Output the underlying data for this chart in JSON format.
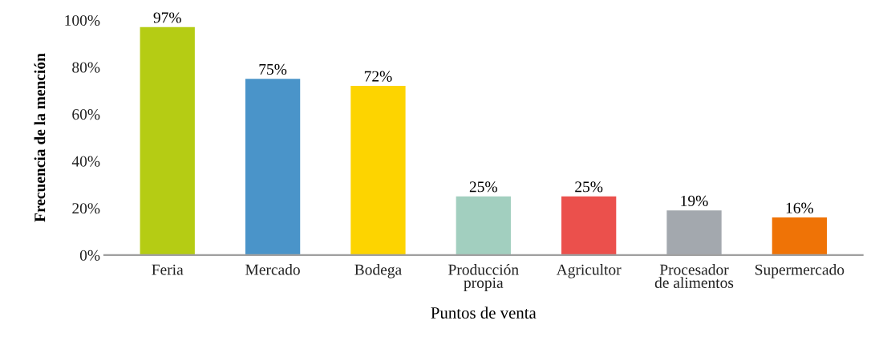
{
  "chart_data": {
    "type": "bar",
    "xlabel": "Puntos de venta",
    "ylabel": "Frecuencia de la mención",
    "categories": [
      "Feria",
      "Mercado",
      "Bodega",
      "Producción\npropia",
      "Agricultor",
      "Procesador\nde alimentos",
      "Supermercado"
    ],
    "values": [
      97,
      75,
      72,
      25,
      25,
      19,
      16
    ],
    "colors": [
      "#b5cc14",
      "#4a94c9",
      "#fdd400",
      "#a2cfbf",
      "#eb504c",
      "#a3a8ae",
      "#ef7306"
    ],
    "value_labels": [
      "97%",
      "75%",
      "72%",
      "25%",
      "25%",
      "19%",
      "16%"
    ],
    "ylim": [
      0,
      100
    ],
    "yticks": [
      {
        "value": 0,
        "label": "0%"
      },
      {
        "value": 20,
        "label": "20%"
      },
      {
        "value": 40,
        "label": "40%"
      },
      {
        "value": 60,
        "label": "60%"
      },
      {
        "value": 80,
        "label": "80%"
      },
      {
        "value": 100,
        "label": "100%"
      }
    ],
    "grid": false,
    "legend": false
  }
}
